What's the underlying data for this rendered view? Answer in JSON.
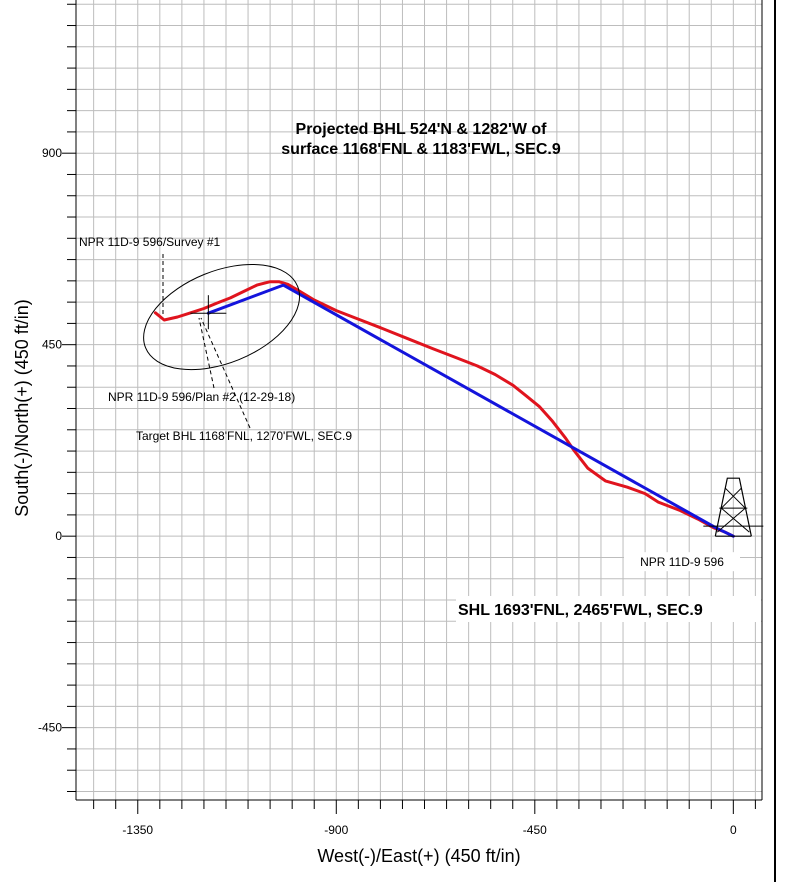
{
  "chart_data": {
    "type": "line",
    "xlabel": "West(-)/East(+) (450 ft/in)",
    "ylabel": "South(-)/North(+) (450 ft/in)",
    "xlim": [
      -1490,
      65
    ],
    "ylim": [
      -620,
      1260
    ],
    "x_ticks": [
      -1350,
      -900,
      -450,
      0
    ],
    "y_ticks": [
      -450,
      0,
      450,
      900
    ],
    "grid": true,
    "series": [
      {
        "name": "NPR 11D-9 596/Survey #1",
        "color": "#e0141e",
        "x": [
          0,
          -20,
          -45,
          -80,
          -120,
          -170,
          -200,
          -240,
          -290,
          -330,
          -345,
          -360,
          -380,
          -410,
          -440,
          -470,
          -500,
          -540,
          -580,
          -630,
          -680,
          -740,
          -800,
          -850,
          -900,
          -950,
          -990,
          -1010,
          -1030,
          -1050,
          -1080,
          -1110,
          -1140,
          -1170,
          -1200,
          -1230,
          -1260,
          -1290,
          -1310
        ],
        "y": [
          0,
          10,
          20,
          40,
          60,
          80,
          100,
          115,
          130,
          160,
          180,
          200,
          230,
          270,
          305,
          330,
          355,
          380,
          400,
          420,
          440,
          465,
          490,
          510,
          530,
          555,
          580,
          592,
          598,
          598,
          590,
          575,
          560,
          548,
          535,
          525,
          515,
          508,
          525
        ]
      },
      {
        "name": "NPR 11D-9 596/Plan #2 (12-29-18)",
        "color": "#1414dc",
        "x": [
          0,
          -40,
          -1020,
          -1190
        ],
        "y": [
          0,
          20,
          590,
          524
        ]
      }
    ],
    "annotations": {
      "projected_bhl_line1": "Projected BHL 524'N & 1282'W of",
      "projected_bhl_line2": "surface 1168'FNL & 1183'FWL, SEC.9",
      "survey_label": "NPR 11D-9 596/Survey #1",
      "plan_label": "NPR 11D-9 596/Plan #2 (12-29-18)",
      "target_label": "Target BHL 1168'FNL, 1270'FWL, SEC.9",
      "well_label": "NPR 11D-9 596",
      "shl_label": "SHL 1693'FNL, 2465'FWL, SEC.9"
    }
  }
}
